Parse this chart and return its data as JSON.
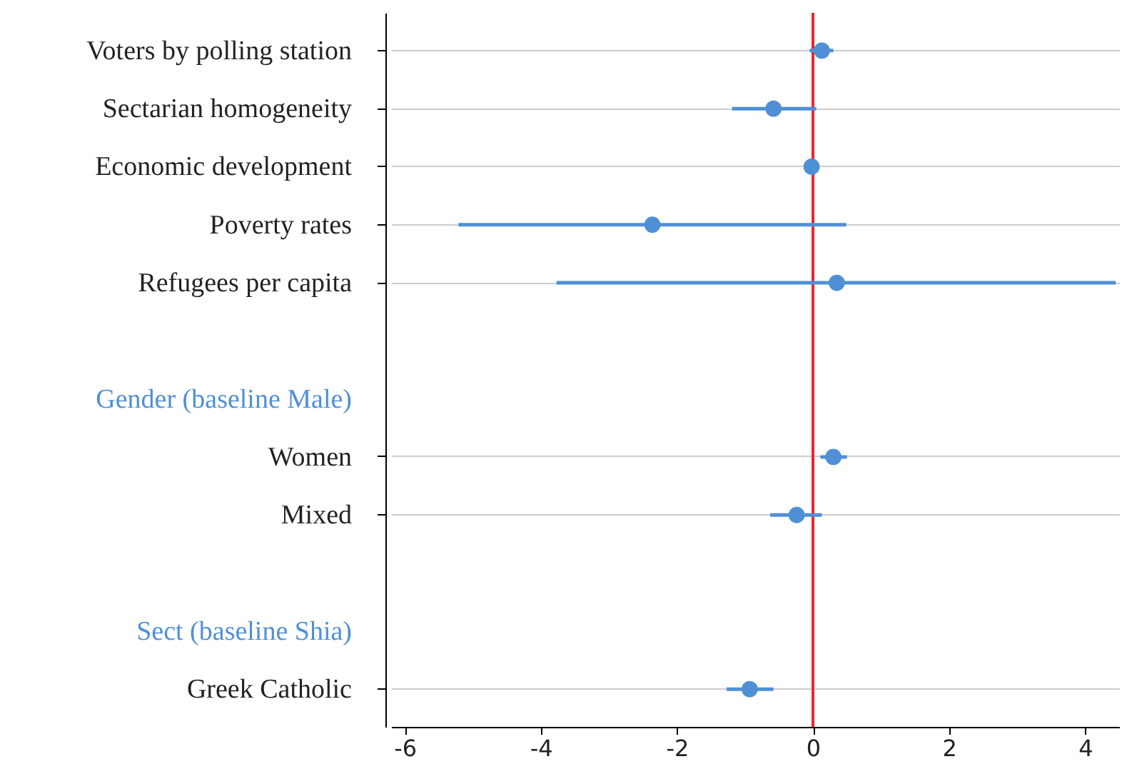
{
  "chart_data": {
    "type": "scatter",
    "categories": [
      "Voters by polling station",
      "Sectarian homogeneity",
      "Economic development",
      "Poverty rates",
      "Refugees per capita",
      null,
      "Gender (baseline Male)",
      "Women",
      "Mixed",
      null,
      "Sect (baseline Shia)",
      "Greek Catholic"
    ],
    "color": "#4f8fd6",
    "values": [
      0.13,
      -0.58,
      -0.02,
      -2.36,
      0.35,
      null,
      null,
      0.3,
      -0.24,
      null,
      null,
      -0.93
    ],
    "errors": [
      [
        -0.05,
        0.3
      ],
      [
        -1.19,
        0.05
      ],
      null,
      [
        -5.21,
        0.49
      ],
      [
        -3.77,
        4.45
      ],
      null,
      null,
      [
        0.11,
        0.5
      ],
      [
        -0.63,
        0.13
      ],
      null,
      null,
      [
        -1.27,
        -0.58
      ]
    ],
    "orientation": "horizontal",
    "xlim": [
      -6.2,
      4.5
    ],
    "xticks": [
      -6,
      -4,
      -2,
      0,
      2,
      4
    ],
    "ref_lines": [
      {
        "axis": "x",
        "value": 0,
        "color": "#e8262b"
      }
    ],
    "grid": "y",
    "marker": "circle",
    "legend": false
  }
}
